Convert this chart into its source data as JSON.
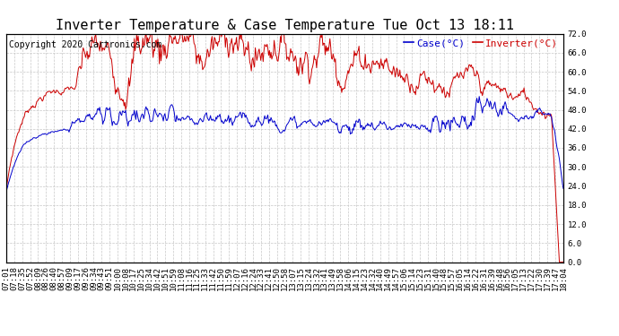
{
  "title": "Inverter Temperature & Case Temperature Tue Oct 13 18:11",
  "copyright": "Copyright 2020 Cartronics.com",
  "legend_case": "Case(°C)",
  "legend_inverter": "Inverter(°C)",
  "ylabel_right_ticks": [
    0.0,
    6.0,
    12.0,
    18.0,
    24.0,
    30.0,
    36.0,
    42.0,
    48.0,
    54.0,
    60.0,
    66.0,
    72.0
  ],
  "ylim": [
    0.0,
    72.0
  ],
  "bg_color": "#ffffff",
  "plot_bg_color": "#ffffff",
  "grid_color": "#c8c8c8",
  "case_color": "#0000cc",
  "inverter_color": "#cc0000",
  "title_fontsize": 11,
  "copyright_fontsize": 7,
  "tick_labelsize": 6.5,
  "legend_fontsize": 8,
  "line_width": 0.7,
  "xtick_labels": [
    "07:01",
    "07:18",
    "07:35",
    "07:52",
    "08:09",
    "08:26",
    "08:40",
    "08:57",
    "09:09",
    "09:17",
    "09:26",
    "09:34",
    "09:43",
    "09:51",
    "10:00",
    "10:08",
    "10:17",
    "10:25",
    "10:34",
    "10:42",
    "10:51",
    "10:59",
    "11:08",
    "11:16",
    "11:25",
    "11:33",
    "11:42",
    "11:50",
    "11:59",
    "12:07",
    "12:16",
    "12:24",
    "12:33",
    "12:41",
    "12:50",
    "12:58",
    "13:07",
    "13:15",
    "13:24",
    "13:32",
    "13:41",
    "13:49",
    "13:58",
    "14:06",
    "14:15",
    "14:23",
    "14:32",
    "14:40",
    "14:49",
    "14:57",
    "15:06",
    "15:14",
    "15:23",
    "15:31",
    "15:40",
    "15:48",
    "15:57",
    "16:05",
    "16:14",
    "16:22",
    "16:31",
    "16:39",
    "16:48",
    "16:56",
    "17:05",
    "17:13",
    "17:22",
    "17:30",
    "17:39",
    "17:47",
    "18:04"
  ]
}
